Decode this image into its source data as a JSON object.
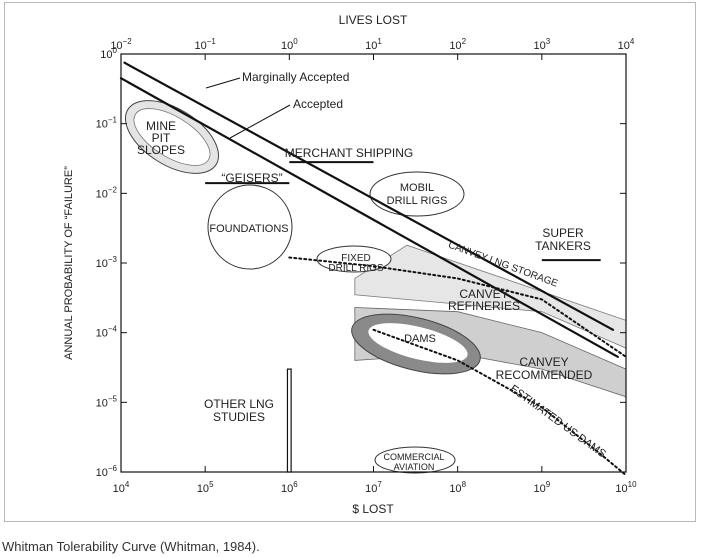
{
  "caption": "Whitman Tolerability Curve (Whitman, 1984).",
  "chart_data": {
    "type": "line",
    "top_axis_label": "LIVES LOST",
    "xlabel": "$ LOST",
    "ylabel": "ANNUAL PROBABILITY OF “FAILURE”",
    "x_scale": "log",
    "y_scale": "log",
    "xlim": [
      10000,
      10000000000
    ],
    "ylim": [
      1e-06,
      1
    ],
    "top_xlim": [
      0.01,
      10000
    ],
    "x_ticks": [
      {
        "value": 10000,
        "base": "10",
        "exp": "4"
      },
      {
        "value": 100000,
        "base": "10",
        "exp": "5"
      },
      {
        "value": 1000000,
        "base": "10",
        "exp": "6"
      },
      {
        "value": 10000000,
        "base": "10",
        "exp": "7"
      },
      {
        "value": 100000000,
        "base": "10",
        "exp": "8"
      },
      {
        "value": 1000000000,
        "base": "10",
        "exp": "9"
      },
      {
        "value": 10000000000,
        "base": "10",
        "exp": "10"
      }
    ],
    "top_ticks": [
      {
        "value": 0.01,
        "base": "10",
        "exp": "−2"
      },
      {
        "value": 0.1,
        "base": "10",
        "exp": "−1"
      },
      {
        "value": 1,
        "base": "10",
        "exp": "0"
      },
      {
        "value": 10,
        "base": "10",
        "exp": "1"
      },
      {
        "value": 100,
        "base": "10",
        "exp": "2"
      },
      {
        "value": 1000,
        "base": "10",
        "exp": "3"
      },
      {
        "value": 10000,
        "base": "10",
        "exp": "4"
      }
    ],
    "y_ticks": [
      {
        "value": 1,
        "base": "10",
        "exp": "0"
      },
      {
        "value": 0.1,
        "base": "10",
        "exp": "−1"
      },
      {
        "value": 0.01,
        "base": "10",
        "exp": "−2"
      },
      {
        "value": 0.001,
        "base": "10",
        "exp": "−3"
      },
      {
        "value": 0.0001,
        "base": "10",
        "exp": "−4"
      },
      {
        "value": 1e-05,
        "base": "10",
        "exp": "−5"
      },
      {
        "value": 1e-06,
        "base": "10",
        "exp": "−6"
      }
    ],
    "series": [
      {
        "name": "Marginally Accepted",
        "style": "solid-thick",
        "points": [
          [
            11000,
            0.75
          ],
          [
            7000000000,
            0.00011
          ]
        ]
      },
      {
        "name": "Accepted",
        "style": "solid-thick",
        "points": [
          [
            10000,
            0.45
          ],
          [
            8000000000,
            4.5e-05
          ]
        ]
      },
      {
        "name": "CANVEY LNG STORAGE",
        "style": "dotted",
        "points": [
          [
            1000000,
            0.0012
          ],
          [
            10000000,
            0.0009
          ],
          [
            100000000,
            0.0006
          ],
          [
            1000000000,
            0.0003
          ],
          [
            10000000000,
            4.5e-05
          ]
        ]
      },
      {
        "name": "ESTIMATED US DAMS",
        "style": "dotted",
        "points": [
          [
            10000000,
            0.00011
          ],
          [
            100000000,
            4e-05
          ],
          [
            1000000000,
            8.5e-06
          ],
          [
            5000000000,
            1.8e-06
          ],
          [
            10000000000,
            9e-07
          ]
        ]
      }
    ],
    "regions": [
      {
        "label": "MINE PIT SLOPES",
        "cx": 290000,
        "cy": 0.05
      },
      {
        "label": "MOBIL DRILL RIGS",
        "cx": 50000000,
        "cy": 0.011
      },
      {
        "label": "FOUNDATIONS",
        "cx": 330000,
        "cy": 0.004
      },
      {
        "label": "FIXED DRILL RIGS",
        "cx": 8000000,
        "cy": 0.0009
      },
      {
        "label": "COMMERCIAL AVIATION",
        "cx": 40000000,
        "cy": 1.5e-06
      },
      {
        "label": "DAMS",
        "cx": 45000000,
        "cy": 9e-05
      },
      {
        "label": "CANVEY REFINERIES"
      },
      {
        "label": "CANVEY RECOMMENDED"
      }
    ],
    "bars": [
      {
        "label": "MERCHANT SHIPPING",
        "x": [
          1000000,
          10000000
        ],
        "y": 0.028
      },
      {
        "label": "“GEISERS”",
        "x": [
          100000,
          1000000
        ],
        "y": 0.014
      },
      {
        "label": "SUPER TANKERS",
        "x": [
          1000000000,
          5000000000
        ],
        "y": 0.0011
      }
    ],
    "other_lng_studies": {
      "label": "OTHER LNG STUDIES",
      "x": [
        950000,
        1050000
      ],
      "y": [
        1e-06,
        3e-05
      ]
    },
    "annotations": [
      "Marginally Accepted",
      "Accepted"
    ],
    "grid": false,
    "legend": "none"
  }
}
